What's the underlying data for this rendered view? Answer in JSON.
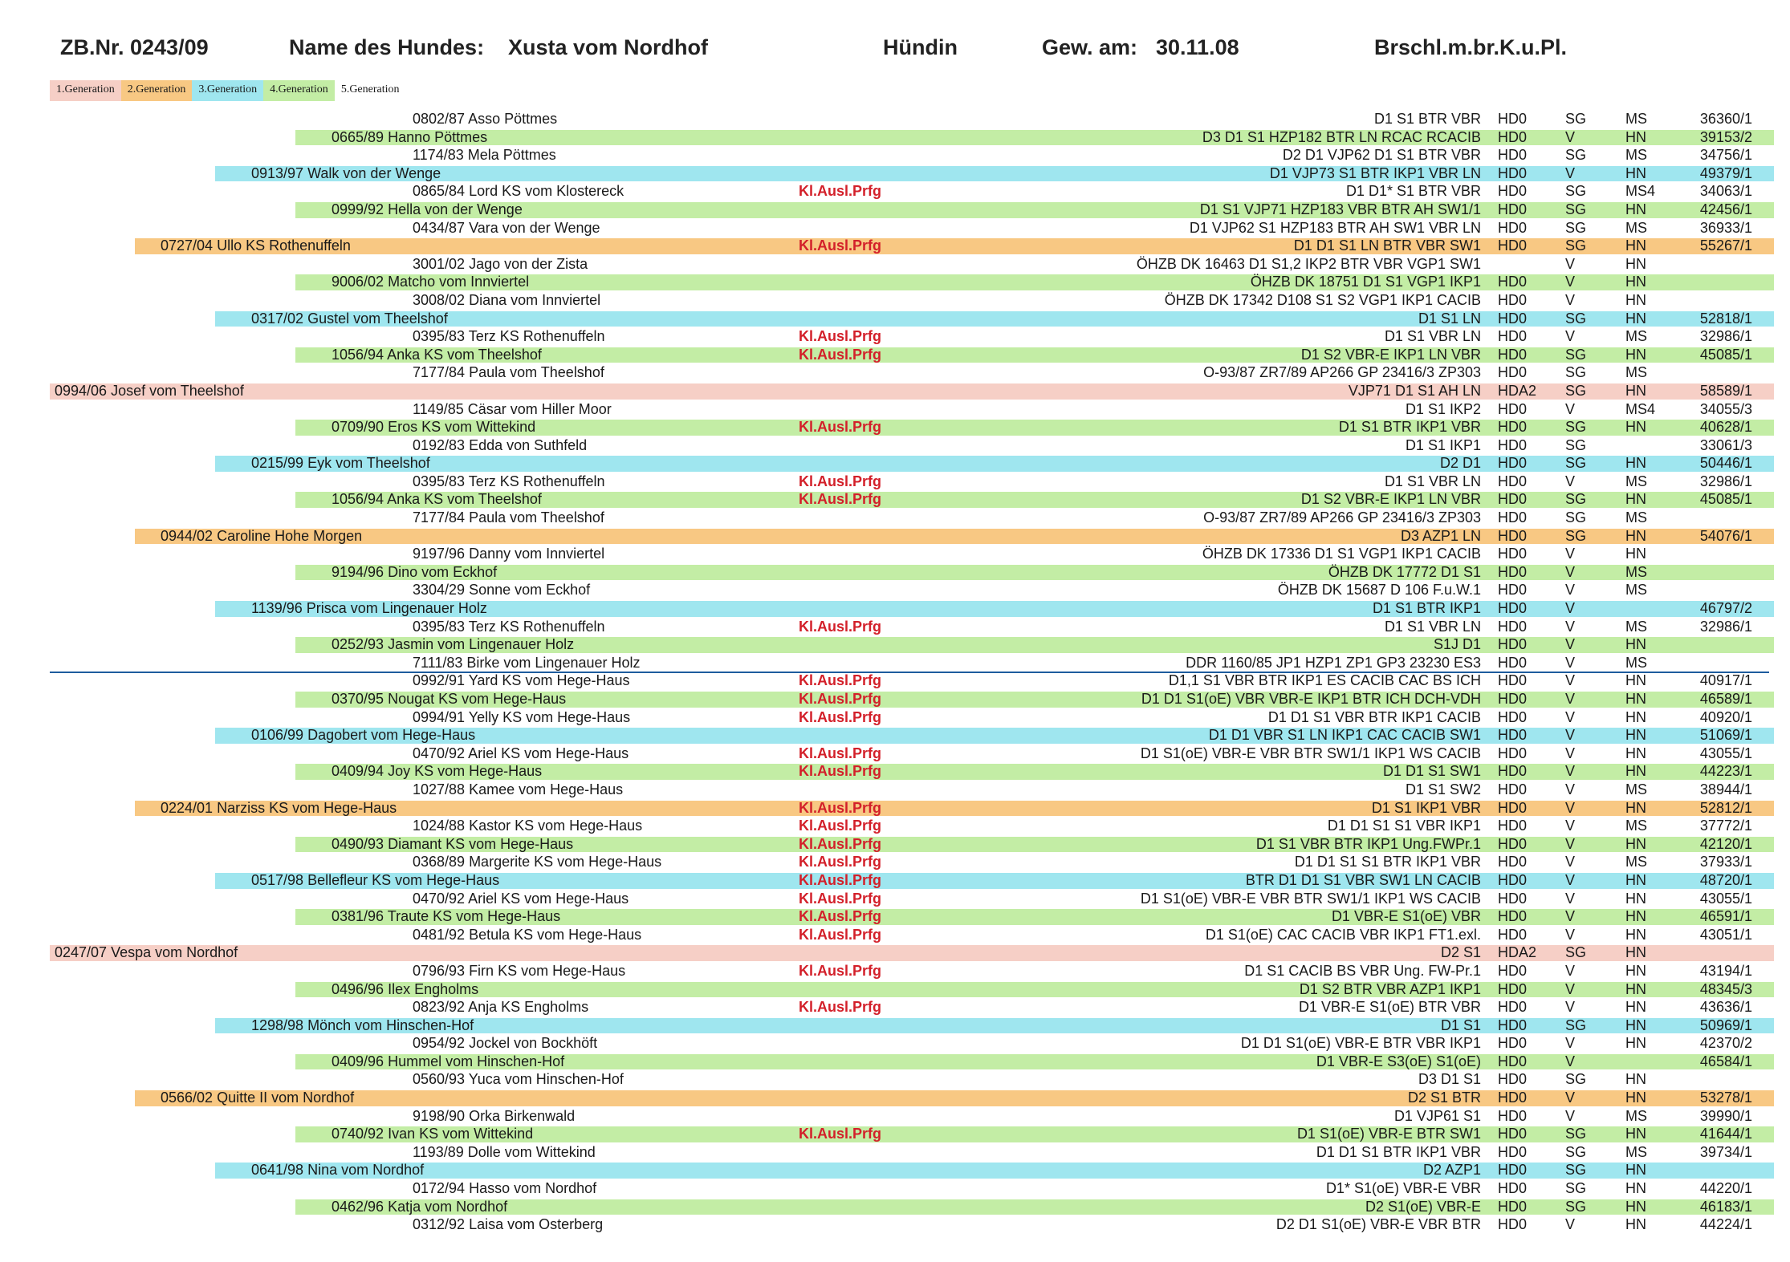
{
  "header": {
    "zb": "ZB.Nr. 0243/09",
    "name_label": "Name des Hundes:",
    "name_value": "Xusta vom Nordhof",
    "sex": "Hündin",
    "born_label": "Gew. am:",
    "born_value": "30.11.08",
    "color": "Brschl.m.br.K.u.Pl."
  },
  "legend": [
    "1.Generation",
    "2.Generation",
    "3.Generation",
    "4.Generation",
    "5.Generation"
  ],
  "colors": {
    "gen1": "#f6cfc6",
    "gen2": "#f8c883",
    "gen3": "#9fe6ef",
    "gen4": "#c3eda5",
    "prfg": "#d3202a",
    "separator": "#1d5c9e"
  },
  "rows": [
    {
      "g": 5,
      "n": "0802/87 Asso  Pöttmes",
      "p": "",
      "t": "D1 S1 BTR VBR",
      "h": "HD0",
      "r": "SG",
      "z": "MS",
      "d": "36360/1"
    },
    {
      "g": 4,
      "n": "0665/89 Hanno  Pöttmes",
      "p": "",
      "t": "D3 D1 S1 HZP182 BTR LN RCAC RCACIB",
      "h": "HD0",
      "r": "V",
      "z": "HN",
      "d": "39153/2"
    },
    {
      "g": 5,
      "n": "1174/83 Mela  Pöttmes",
      "p": "",
      "t": "D2 D1 VJP62 D1 S1 BTR VBR",
      "h": "HD0",
      "r": "SG",
      "z": "MS",
      "d": "34756/1"
    },
    {
      "g": 3,
      "n": "0913/97 Walk von der Wenge",
      "p": "",
      "t": "D1 VJP73 S1 BTR IKP1 VBR LN",
      "h": "HD0",
      "r": "V",
      "z": "HN",
      "d": "49379/1"
    },
    {
      "g": 5,
      "n": "0865/84 Lord KS vom Klostereck",
      "p": "Kl.Ausl.Prfg",
      "t": "D1 D1* S1 BTR VBR",
      "h": "HD0",
      "r": "SG",
      "z": "MS4",
      "d": "34063/1"
    },
    {
      "g": 4,
      "n": "0999/92 Hella von der Wenge",
      "p": "",
      "t": "D1 S1 VJP71 HZP183 VBR BTR AH SW1/1",
      "h": "HD0",
      "r": "SG",
      "z": "HN",
      "d": "42456/1"
    },
    {
      "g": 5,
      "n": "0434/87 Vara von der Wenge",
      "p": "",
      "t": "D1 VJP62 S1 HZP183 BTR AH SW1 VBR LN",
      "h": "HD0",
      "r": "SG",
      "z": "MS",
      "d": "36933/1"
    },
    {
      "g": 2,
      "n": "0727/04 Ullo KS  Rothenuffeln",
      "p": "Kl.Ausl.Prfg",
      "t": "D1 D1 S1 LN BTR VBR SW1",
      "h": "HD0",
      "r": "SG",
      "z": "HN",
      "d": "55267/1"
    },
    {
      "g": 5,
      "n": "3001/02 Jago von der Zista",
      "p": "",
      "t": "ÖHZB DK 16463 D1 S1,2 IKP2 BTR VBR VGP1 SW1",
      "h": "",
      "r": "V",
      "z": "HN",
      "d": ""
    },
    {
      "g": 4,
      "n": "9006/02 Matcho vom Innviertel",
      "p": "",
      "t": "ÖHZB DK 18751 D1 S1 VGP1 IKP1",
      "h": "HD0",
      "r": "V",
      "z": "HN",
      "d": ""
    },
    {
      "g": 5,
      "n": "3008/02 Diana vom Innviertel",
      "p": "",
      "t": "ÖHZB DK 17342 D108 S1 S2 VGP1 IKP1 CACIB",
      "h": "HD0",
      "r": "V",
      "z": "HN",
      "d": ""
    },
    {
      "g": 3,
      "n": "0317/02 Gustel vom Theelshof",
      "p": "",
      "t": "D1 S1 LN",
      "h": "HD0",
      "r": "SG",
      "z": "HN",
      "d": "52818/1"
    },
    {
      "g": 5,
      "n": "0395/83 Terz KS  Rothenuffeln",
      "p": "Kl.Ausl.Prfg",
      "t": "D1 S1 VBR LN",
      "h": "HD0",
      "r": "V",
      "z": "MS",
      "d": "32986/1"
    },
    {
      "g": 4,
      "n": "1056/94 Anka KS vom Theelshof",
      "p": "Kl.Ausl.Prfg",
      "t": "D1 S2 VBR-E IKP1 LN VBR",
      "h": "HD0",
      "r": "SG",
      "z": "HN",
      "d": "45085/1"
    },
    {
      "g": 5,
      "n": "7177/84 Paula vom Theelshof",
      "p": "",
      "t": "O-93/87 ZR7/89 AP266 GP 23416/3 ZP303",
      "h": "HD0",
      "r": "SG",
      "z": "MS",
      "d": ""
    },
    {
      "g": 1,
      "n": "0994/06 Josef vom Theelshof",
      "p": "",
      "t": "VJP71 D1 S1 AH LN",
      "h": "HDA2",
      "r": "SG",
      "z": "HN",
      "d": "58589/1"
    },
    {
      "g": 5,
      "n": "1149/85 Cäsar vom Hiller Moor",
      "p": "",
      "t": "D1 S1 IKP2",
      "h": "HD0",
      "r": "V",
      "z": "MS4",
      "d": "34055/3"
    },
    {
      "g": 4,
      "n": "0709/90 Eros KS vom Wittekind",
      "p": "Kl.Ausl.Prfg",
      "t": "D1 S1 BTR IKP1 VBR",
      "h": "HD0",
      "r": "SG",
      "z": "HN",
      "d": "40628/1"
    },
    {
      "g": 5,
      "n": "0192/83 Edda von Suthfeld",
      "p": "",
      "t": "D1 S1 IKP1",
      "h": "HD0",
      "r": "SG",
      "z": "",
      "d": "33061/3"
    },
    {
      "g": 3,
      "n": "0215/99 Eyk vom Theelshof",
      "p": "",
      "t": "D2 D1",
      "h": "HD0",
      "r": "SG",
      "z": "HN",
      "d": "50446/1"
    },
    {
      "g": 5,
      "n": "0395/83 Terz KS  Rothenuffeln",
      "p": "Kl.Ausl.Prfg",
      "t": "D1 S1 VBR LN",
      "h": "HD0",
      "r": "V",
      "z": "MS",
      "d": "32986/1"
    },
    {
      "g": 4,
      "n": "1056/94 Anka KS vom Theelshof",
      "p": "Kl.Ausl.Prfg",
      "t": "D1 S2 VBR-E IKP1 LN VBR",
      "h": "HD0",
      "r": "SG",
      "z": "HN",
      "d": "45085/1"
    },
    {
      "g": 5,
      "n": "7177/84 Paula vom Theelshof",
      "p": "",
      "t": "O-93/87 ZR7/89 AP266 GP 23416/3 ZP303",
      "h": "HD0",
      "r": "SG",
      "z": "MS",
      "d": ""
    },
    {
      "g": 2,
      "n": "0944/02 Caroline  Hohe Morgen",
      "p": "",
      "t": "D3 AZP1 LN",
      "h": "HD0",
      "r": "SG",
      "z": "HN",
      "d": "54076/1"
    },
    {
      "g": 5,
      "n": "9197/96 Danny vom Innviertel",
      "p": "",
      "t": "ÖHZB DK 17336 D1 S1 VGP1 IKP1 CACIB",
      "h": "HD0",
      "r": "V",
      "z": "HN",
      "d": ""
    },
    {
      "g": 4,
      "n": "9194/96 Dino vom Eckhof",
      "p": "",
      "t": "ÖHZB DK 17772 D1 S1",
      "h": "HD0",
      "r": "V",
      "z": "MS",
      "d": ""
    },
    {
      "g": 5,
      "n": "3304/29 Sonne vom Eckhof",
      "p": "",
      "t": "ÖHZB DK 15687 D 106 F.u.W.1",
      "h": "HD0",
      "r": "V",
      "z": "MS",
      "d": ""
    },
    {
      "g": 3,
      "n": "1139/96 Prisca vom Lingenauer Holz",
      "p": "",
      "t": "D1 S1 BTR IKP1",
      "h": "HD0",
      "r": "V",
      "z": "",
      "d": "46797/2"
    },
    {
      "g": 5,
      "n": "0395/83 Terz KS  Rothenuffeln",
      "p": "Kl.Ausl.Prfg",
      "t": "D1 S1 VBR LN",
      "h": "HD0",
      "r": "V",
      "z": "MS",
      "d": "32986/1"
    },
    {
      "g": 4,
      "n": "0252/93 Jasmin vom Lingenauer Holz",
      "p": "",
      "t": "S1J D1",
      "h": "HD0",
      "r": "V",
      "z": "HN",
      "d": ""
    },
    {
      "g": 5,
      "n": "7111/83 Birke vom Lingenauer Holz",
      "p": "",
      "t": "DDR 1160/85 JP1 HZP1 ZP1 GP3 23230 ES3",
      "h": "HD0",
      "r": "V",
      "z": "MS",
      "d": ""
    },
    {
      "g": 5,
      "n": "0992/91 Yard KS vom Hege-Haus",
      "p": "Kl.Ausl.Prfg",
      "t": "D1,1 S1 VBR BTR IKP1 ES CACIB CAC BS ICH",
      "h": "HD0",
      "r": "V",
      "z": "HN",
      "d": "40917/1"
    },
    {
      "g": 4,
      "n": "0370/95 Nougat KS vom Hege-Haus",
      "p": "Kl.Ausl.Prfg",
      "t": "D1 D1 S1(oE) VBR VBR-E IKP1 BTR ICH DCH-VDH",
      "h": "HD0",
      "r": "V",
      "z": "HN",
      "d": "46589/1"
    },
    {
      "g": 5,
      "n": "0994/91 Yelly KS vom Hege-Haus",
      "p": "Kl.Ausl.Prfg",
      "t": "D1 D1 S1 VBR BTR IKP1 CACIB",
      "h": "HD0",
      "r": "V",
      "z": "HN",
      "d": "40920/1"
    },
    {
      "g": 3,
      "n": "0106/99 Dagobert vom Hege-Haus",
      "p": "",
      "t": "D1 D1 VBR S1 LN IKP1 CAC CACIB SW1",
      "h": "HD0",
      "r": "V",
      "z": "HN",
      "d": "51069/1"
    },
    {
      "g": 5,
      "n": "0470/92 Ariel KS vom Hege-Haus",
      "p": "Kl.Ausl.Prfg",
      "t": "D1 S1(oE) VBR-E VBR BTR SW1/1 IKP1 WS CACIB",
      "h": "HD0",
      "r": "V",
      "z": "HN",
      "d": "43055/1"
    },
    {
      "g": 4,
      "n": "0409/94 Joy KS vom Hege-Haus",
      "p": "Kl.Ausl.Prfg",
      "t": "D1 D1 S1 SW1",
      "h": "HD0",
      "r": "V",
      "z": "HN",
      "d": "44223/1"
    },
    {
      "g": 5,
      "n": "1027/88 Kamee vom Hege-Haus",
      "p": "",
      "t": "D1 S1 SW2",
      "h": "HD0",
      "r": "V",
      "z": "MS",
      "d": "38944/1"
    },
    {
      "g": 2,
      "n": "0224/01 Narziss KS vom Hege-Haus",
      "p": "Kl.Ausl.Prfg",
      "t": "D1 S1 IKP1 VBR",
      "h": "HD0",
      "r": "V",
      "z": "HN",
      "d": "52812/1"
    },
    {
      "g": 5,
      "n": "1024/88 Kastor KS vom Hege-Haus",
      "p": "Kl.Ausl.Prfg",
      "t": "D1 D1 S1 S1 VBR IKP1",
      "h": "HD0",
      "r": "V",
      "z": "MS",
      "d": "37772/1"
    },
    {
      "g": 4,
      "n": "0490/93 Diamant KS vom Hege-Haus",
      "p": "Kl.Ausl.Prfg",
      "t": "D1 S1 VBR BTR IKP1  Ung.FWPr.1",
      "h": "HD0",
      "r": "V",
      "z": "HN",
      "d": "42120/1"
    },
    {
      "g": 5,
      "n": "0368/89 Margerite KS vom Hege-Haus",
      "p": "Kl.Ausl.Prfg",
      "t": "D1 D1 S1 S1 BTR IKP1 VBR",
      "h": "HD0",
      "r": "V",
      "z": "MS",
      "d": "37933/1"
    },
    {
      "g": 3,
      "n": "0517/98 Bellefleur KS vom Hege-Haus",
      "p": "Kl.Ausl.Prfg",
      "t": "BTR D1 D1 S1 VBR SW1 LN CACIB",
      "h": "HD0",
      "r": "V",
      "z": "HN",
      "d": "48720/1"
    },
    {
      "g": 5,
      "n": "0470/92 Ariel KS vom Hege-Haus",
      "p": "Kl.Ausl.Prfg",
      "t": "D1 S1(oE) VBR-E VBR BTR SW1/1 IKP1 WS CACIB",
      "h": "HD0",
      "r": "V",
      "z": "HN",
      "d": "43055/1"
    },
    {
      "g": 4,
      "n": "0381/96 Traute KS vom Hege-Haus",
      "p": "Kl.Ausl.Prfg",
      "t": "D1 VBR-E S1(oE) VBR",
      "h": "HD0",
      "r": "V",
      "z": "HN",
      "d": "46591/1"
    },
    {
      "g": 5,
      "n": "0481/92 Betula KS vom Hege-Haus",
      "p": "Kl.Ausl.Prfg",
      "t": "D1 S1(oE) CAC CACIB VBR IKP1 FT1.exl.",
      "h": "HD0",
      "r": "V",
      "z": "HN",
      "d": "43051/1"
    },
    {
      "g": 1,
      "n": "0247/07 Vespa vom Nordhof",
      "p": "",
      "t": "D2 S1",
      "h": "HDA2",
      "r": "SG",
      "z": "HN",
      "d": ""
    },
    {
      "g": 5,
      "n": "0796/93 Firn KS vom Hege-Haus",
      "p": "Kl.Ausl.Prfg",
      "t": "D1 S1 CACIB BS VBR Ung. FW-Pr.1",
      "h": "HD0",
      "r": "V",
      "z": "HN",
      "d": "43194/1"
    },
    {
      "g": 4,
      "n": "0496/96 Ilex  Engholms",
      "p": "",
      "t": "D1 S2 BTR VBR AZP1 IKP1",
      "h": "HD0",
      "r": "V",
      "z": "HN",
      "d": "48345/3"
    },
    {
      "g": 5,
      "n": "0823/92 Anja KS  Engholms",
      "p": "Kl.Ausl.Prfg",
      "t": "D1 VBR-E S1(oE) BTR VBR",
      "h": "HD0",
      "r": "V",
      "z": "HN",
      "d": "43636/1"
    },
    {
      "g": 3,
      "n": "1298/98 Mönch vom Hinschen-Hof",
      "p": "",
      "t": "D1 S1",
      "h": "HD0",
      "r": "SG",
      "z": "HN",
      "d": "50969/1"
    },
    {
      "g": 5,
      "n": "0954/92 Jockel von Bockhöft",
      "p": "",
      "t": "D1 D1 S1(oE) VBR-E BTR VBR IKP1",
      "h": "HD0",
      "r": "V",
      "z": "HN",
      "d": "42370/2"
    },
    {
      "g": 4,
      "n": "0409/96 Hummel vom Hinschen-Hof",
      "p": "",
      "t": "D1 VBR-E S3(oE) S1(oE)",
      "h": "HD0",
      "r": "V",
      "z": "",
      "d": "46584/1"
    },
    {
      "g": 5,
      "n": "0560/93 Yuca vom Hinschen-Hof",
      "p": "",
      "t": "D3 D1 S1",
      "h": "HD0",
      "r": "SG",
      "z": "HN",
      "d": ""
    },
    {
      "g": 2,
      "n": "0566/02 Quitte II vom Nordhof",
      "p": "",
      "t": "D2  S1 BTR",
      "h": "HD0",
      "r": "V",
      "z": "HN",
      "d": "53278/1"
    },
    {
      "g": 5,
      "n": "9198/90 Orka  Birkenwald",
      "p": "",
      "t": "D1 VJP61 S1",
      "h": "HD0",
      "r": "V",
      "z": "MS",
      "d": "39990/1"
    },
    {
      "g": 4,
      "n": "0740/92 Ivan KS vom Wittekind",
      "p": "Kl.Ausl.Prfg",
      "t": "D1 S1(oE) VBR-E BTR SW1",
      "h": "HD0",
      "r": "SG",
      "z": "HN",
      "d": "41644/1"
    },
    {
      "g": 5,
      "n": "1193/89 Dolle vom Wittekind",
      "p": "",
      "t": "D1 D1 S1 BTR IKP1 VBR",
      "h": "HD0",
      "r": "SG",
      "z": "MS",
      "d": "39734/1"
    },
    {
      "g": 3,
      "n": "0641/98 Nina vom Nordhof",
      "p": "",
      "t": "D2 AZP1",
      "h": "HD0",
      "r": "SG",
      "z": "HN",
      "d": ""
    },
    {
      "g": 5,
      "n": "0172/94 Hasso vom Nordhof",
      "p": "",
      "t": "D1* S1(oE) VBR-E VBR",
      "h": "HD0",
      "r": "SG",
      "z": "HN",
      "d": "44220/1"
    },
    {
      "g": 4,
      "n": "0462/96 Katja vom Nordhof",
      "p": "",
      "t": "D2 S1(oE) VBR-E",
      "h": "HD0",
      "r": "SG",
      "z": "HN",
      "d": "46183/1"
    },
    {
      "g": 5,
      "n": "0312/92 Laisa vom Osterberg",
      "p": "",
      "t": "D2 D1 S1(oE) VBR-E VBR BTR",
      "h": "HD0",
      "r": "V",
      "z": "HN",
      "d": "44224/1"
    }
  ]
}
